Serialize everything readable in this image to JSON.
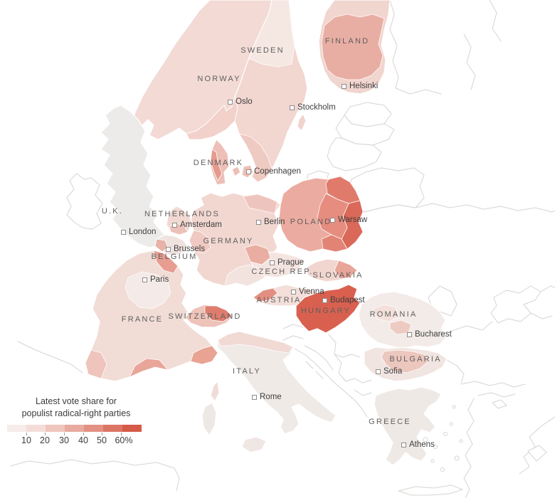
{
  "legend": {
    "title_lines": [
      "Latest vote share for",
      "populist radical-right parties"
    ],
    "tick_labels": [
      "10",
      "20",
      "30",
      "40",
      "50",
      "60%"
    ],
    "scale_colors": [
      "#f6ece9",
      "#f4ddd8",
      "#efc5bc",
      "#e9ab9f",
      "#e29184",
      "#dc7565",
      "#d65a48"
    ]
  },
  "map": {
    "countries": [
      {
        "label": "NORWAY",
        "shade": "#f3dad4"
      },
      {
        "label": "SWEDEN",
        "shade": "#f2d6d0"
      },
      {
        "label": "FINLAND",
        "shade": "#e9aca1"
      },
      {
        "label": "DENMARK",
        "shade": "#edbfb6"
      },
      {
        "label": "U.K.",
        "shade": "#edebe9"
      },
      {
        "label": "NETHERLANDS",
        "shade": "#f1d8d2"
      },
      {
        "label": "GERMANY",
        "shade": "#f2d7d1"
      },
      {
        "label": "BELGIUM",
        "shade": "#f0e3df"
      },
      {
        "label": "POLAND",
        "shade": "#ecaba0"
      },
      {
        "label": "CZECH REP.",
        "shade": "#f4e4e0"
      },
      {
        "label": "SLOVAKIA",
        "shade": "#f1d6d0"
      },
      {
        "label": "AUSTRIA",
        "shade": "#f3ded9"
      },
      {
        "label": "HUNGARY",
        "shade": "#d9604f"
      },
      {
        "label": "SWITZERLAND",
        "shade": "#eec3ba"
      },
      {
        "label": "FRANCE",
        "shade": "#f1dcd6"
      },
      {
        "label": "ITALY",
        "shade": "#f0eae7"
      },
      {
        "label": "ROMANIA",
        "shade": "#f2ebe8"
      },
      {
        "label": "BULGARIA",
        "shade": "#f1e5e1"
      },
      {
        "label": "GREECE",
        "shade": "#efe9e6"
      }
    ],
    "cities": [
      {
        "label": "Oslo"
      },
      {
        "label": "Stockholm"
      },
      {
        "label": "Helsinki"
      },
      {
        "label": "Copenhagen"
      },
      {
        "label": "London"
      },
      {
        "label": "Amsterdam"
      },
      {
        "label": "Brussels"
      },
      {
        "label": "Paris"
      },
      {
        "label": "Berlin"
      },
      {
        "label": "Warsaw"
      },
      {
        "label": "Prague"
      },
      {
        "label": "Vienna"
      },
      {
        "label": "Budapest"
      },
      {
        "label": "Bucharest"
      },
      {
        "label": "Sofia"
      },
      {
        "label": "Rome"
      },
      {
        "label": "Athens"
      }
    ]
  }
}
